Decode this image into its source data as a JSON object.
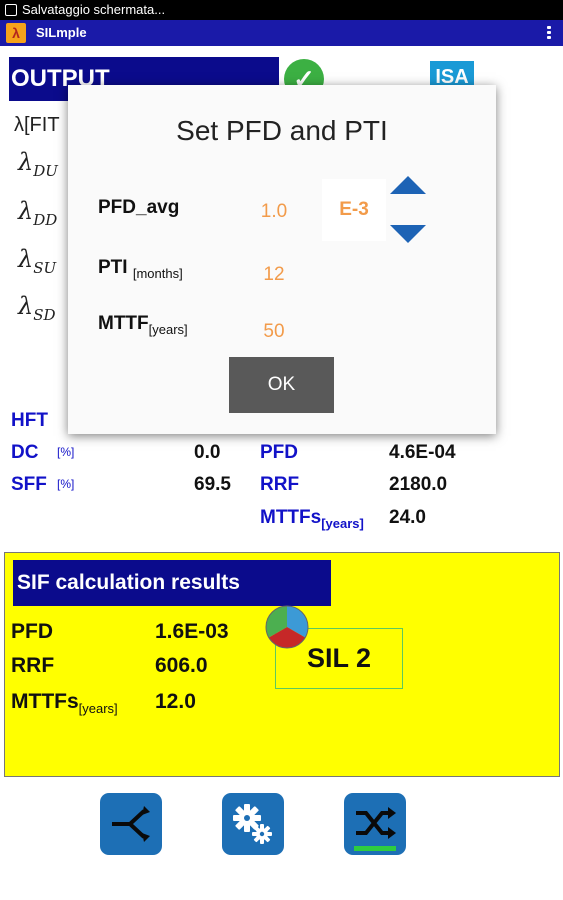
{
  "status_bar": {
    "text": "Salvataggio schermata..."
  },
  "app_bar": {
    "title": "SILmple",
    "logo_glyph": "λ"
  },
  "output": {
    "title": "OUTPUT",
    "isa_label": "ISA",
    "check_glyph": "✓",
    "lambda_fit_label": "λ[FIT",
    "lambdas": [
      {
        "symbol": "λ",
        "sub": "DU"
      },
      {
        "symbol": "λ",
        "sub": "DD"
      },
      {
        "symbol": "λ",
        "sub": "SU"
      },
      {
        "symbol": "λ",
        "sub": "SD"
      }
    ],
    "hft_label": "HFT",
    "dc": {
      "label": "DC",
      "unit": "[%]",
      "value": "0.0"
    },
    "sff": {
      "label": "SFF",
      "unit": "[%]",
      "value": "69.5"
    },
    "pfd": {
      "label": "PFD",
      "value": "4.6E-04"
    },
    "rrf": {
      "label": "RRF",
      "value": "2180.0"
    },
    "mttfs": {
      "label": "MTTFs",
      "unit": "[years]",
      "value": "24.0"
    }
  },
  "dialog": {
    "title": "Set PFD and PTI",
    "pfd_avg": {
      "label": "PFD_avg",
      "value": "1.0",
      "exponent": "E-3"
    },
    "pti": {
      "label": "PTI",
      "unit": "[months]",
      "value": "12"
    },
    "mttf": {
      "label": "MTTF",
      "unit": "[years]",
      "value": "50"
    },
    "ok_label": "OK"
  },
  "sif_results": {
    "title": "SIF calculation results",
    "pfd": {
      "label": "PFD",
      "value": "1.6E-03"
    },
    "rrf": {
      "label": "RRF",
      "value": "606.0"
    },
    "mttfs": {
      "label": "MTTFs",
      "unit": "[years]",
      "value": "12.0"
    },
    "sil": "SIL 2"
  },
  "bottom_nav": [
    {
      "icon": "share-icon"
    },
    {
      "icon": "gears-icon"
    },
    {
      "icon": "shuffle-icon"
    }
  ],
  "colors": {
    "app_bar": "#1a1aa8",
    "title_bar": "#0b0b8c",
    "label_blue": "#1212c8",
    "dialog_value": "#f29b4a",
    "panel_yellow": "#ffff00",
    "button_blue": "#1d6fb5"
  }
}
